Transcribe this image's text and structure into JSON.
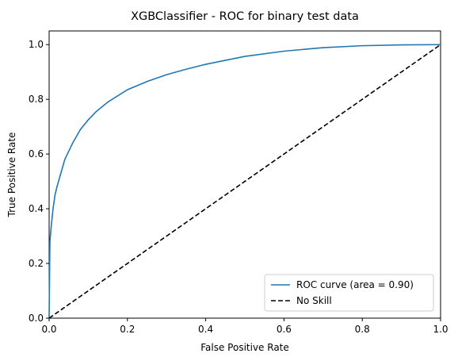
{
  "chart_data": {
    "type": "line",
    "title": "XGBClassifier - ROC for binary test data",
    "xlabel": "False Positive Rate",
    "ylabel": "True Positive Rate",
    "xlim": [
      0.0,
      1.0
    ],
    "ylim": [
      0.0,
      1.05
    ],
    "xticks": [
      "0.0",
      "0.2",
      "0.4",
      "0.6",
      "0.8",
      "1.0"
    ],
    "yticks": [
      "0.0",
      "0.2",
      "0.4",
      "0.6",
      "0.8",
      "1.0"
    ],
    "grid": false,
    "legend_position": "lower-right",
    "series": [
      {
        "name": "ROC curve (area = 0.90)",
        "color": "#1f77b4",
        "style": "solid",
        "x": [
          0,
          0.002,
          0.005,
          0.01,
          0.015,
          0.02,
          0.03,
          0.04,
          0.05,
          0.06,
          0.07,
          0.08,
          0.1,
          0.12,
          0.15,
          0.2,
          0.25,
          0.3,
          0.35,
          0.4,
          0.5,
          0.6,
          0.7,
          0.8,
          0.9,
          1.0
        ],
        "y": [
          0,
          0.28,
          0.33,
          0.4,
          0.45,
          0.48,
          0.53,
          0.58,
          0.61,
          0.64,
          0.665,
          0.69,
          0.725,
          0.755,
          0.79,
          0.835,
          0.865,
          0.89,
          0.91,
          0.928,
          0.957,
          0.976,
          0.989,
          0.996,
          0.999,
          1.0
        ]
      },
      {
        "name": "No Skill",
        "color": "#000000",
        "style": "dashed",
        "x": [
          0,
          1
        ],
        "y": [
          0,
          1
        ]
      }
    ]
  }
}
